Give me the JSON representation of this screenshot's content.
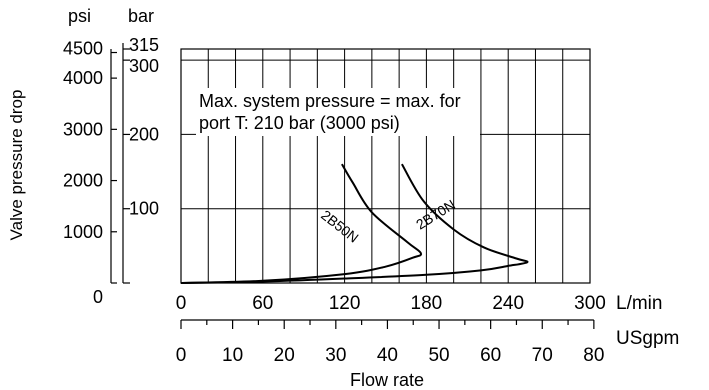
{
  "chart_data": {
    "type": "line",
    "title": "",
    "xlabel": "Flow rate",
    "ylabel": "Valve pressure drop",
    "x_unit_primary": "L/min",
    "x_unit_secondary": "USgpm",
    "y_unit_bar": "bar",
    "y_unit_psi": "psi",
    "xlim": [
      0,
      300
    ],
    "ylim": [
      0,
      315
    ],
    "grid": true,
    "x_ticks_lmin": [
      0,
      60,
      120,
      180,
      240,
      300
    ],
    "x_ticks_lmin_labels": [
      "0",
      "60",
      "120",
      "180",
      "240",
      "300"
    ],
    "x_ticks_usgpm": [
      0,
      10,
      20,
      30,
      40,
      50,
      60,
      70,
      80
    ],
    "x_ticks_usgpm_labels": [
      "0",
      "10",
      "20",
      "30",
      "40",
      "50",
      "60",
      "70",
      "80"
    ],
    "y_ticks_bar": [
      0,
      100,
      200,
      300,
      315
    ],
    "y_ticks_bar_labels": [
      "",
      "100",
      "200",
      "300",
      "315"
    ],
    "y_ticks_psi": [
      0,
      1000,
      2000,
      3000,
      4000,
      4500
    ],
    "y_ticks_psi_labels": [
      "0",
      "1000",
      "2000",
      "3000",
      "4000",
      "4500"
    ],
    "annotation": "Max. system pressure = max. for port T: 210 bar (3000 psi)",
    "series": [
      {
        "name": "2B50N",
        "color": "#000000",
        "x": [
          0,
          60,
          120,
          150,
          170,
          176,
          166,
          140,
          126,
          118
        ],
        "y": [
          0,
          3,
          12,
          22,
          34,
          40,
          55,
          95,
          135,
          160
        ]
      },
      {
        "name": "2B70N",
        "color": "#000000",
        "x": [
          0,
          60,
          120,
          180,
          220,
          240,
          254,
          246,
          222,
          200,
          178,
          162
        ],
        "y": [
          0,
          2,
          6,
          11,
          17,
          23,
          28,
          33,
          48,
          72,
          110,
          160
        ]
      }
    ]
  }
}
